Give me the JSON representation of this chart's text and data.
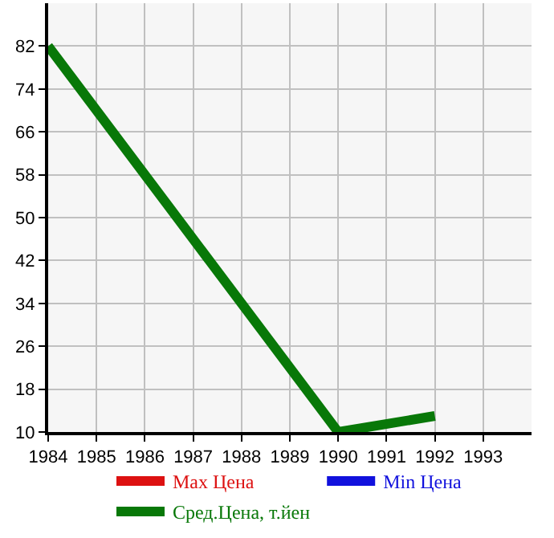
{
  "chart_data": {
    "type": "line",
    "xlim": [
      1984,
      1994
    ],
    "xticks": [
      1984,
      1985,
      1986,
      1987,
      1988,
      1989,
      1990,
      1991,
      1992,
      1993
    ],
    "ylim": [
      10,
      90
    ],
    "yticks": [
      10,
      18,
      26,
      34,
      42,
      50,
      58,
      66,
      74,
      82
    ],
    "grid": true,
    "legend": "bottom",
    "marker": "none",
    "line_style": "solid",
    "series": [
      {
        "name": "Max Цена",
        "color": "#dd1111"
      },
      {
        "name": "Min Цена",
        "color": "#1111dd"
      },
      {
        "name": "Сред.Цена, т.йен",
        "color": "#087808",
        "x": [
          1984,
          1990,
          1992
        ],
        "values": [
          82,
          10,
          13
        ]
      }
    ]
  }
}
